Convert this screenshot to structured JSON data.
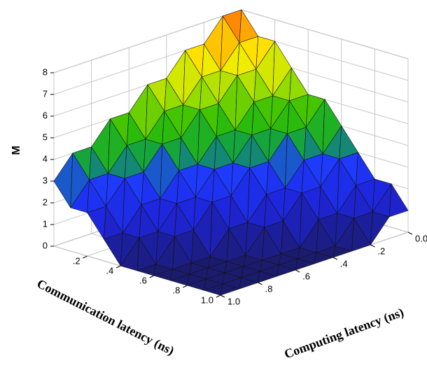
{
  "chart_data": {
    "type": "surface3d",
    "zlabel": "M",
    "xlabel": "Computing latency (ns)",
    "ylabel": "Communication latency (ns)",
    "x": [
      0,
      0.1,
      0.2,
      0.3,
      0.4,
      0.5,
      0.6,
      0.7,
      0.8,
      0.9,
      1.0
    ],
    "y": [
      0,
      0.1,
      0.2,
      0.3,
      0.4,
      0.5,
      0.6,
      0.7,
      0.8,
      0.9,
      1.0
    ],
    "z": [
      [
        8,
        8,
        7,
        7,
        6,
        6,
        5,
        5,
        4,
        4,
        3
      ],
      [
        7,
        7,
        6,
        6,
        5,
        5,
        4,
        4,
        3,
        3,
        2
      ],
      [
        7,
        6,
        6,
        5,
        5,
        4,
        4,
        3,
        3,
        2,
        2
      ],
      [
        6,
        5,
        5,
        4,
        4,
        3,
        3,
        2,
        2,
        1,
        1
      ],
      [
        5,
        5,
        4,
        4,
        3,
        3,
        2,
        2,
        1,
        1,
        0
      ],
      [
        5,
        4,
        4,
        3,
        3,
        2,
        2,
        1,
        1,
        0,
        0
      ],
      [
        4,
        3,
        3,
        2,
        2,
        1,
        1,
        0,
        0,
        0,
        0
      ],
      [
        3,
        3,
        2,
        2,
        1,
        1,
        0,
        0,
        0,
        0,
        0
      ],
      [
        2,
        2,
        1,
        1,
        0,
        0,
        0,
        0,
        0,
        0,
        0
      ],
      [
        2,
        1,
        1,
        0,
        0,
        0,
        0,
        0,
        0,
        0,
        0
      ],
      [
        1,
        1,
        0,
        0,
        0,
        0,
        0,
        0,
        0,
        0,
        0
      ]
    ],
    "xlim": [
      0,
      1
    ],
    "ylim": [
      0,
      1
    ],
    "zlim": [
      0,
      8
    ],
    "xticks": [
      {
        "value": 0,
        "label": "0.0"
      },
      {
        "value": 0.2,
        "label": ".2"
      },
      {
        "value": 0.4,
        "label": ".4"
      },
      {
        "value": 0.6,
        "label": ".6"
      },
      {
        "value": 0.8,
        "label": ".8"
      },
      {
        "value": 1,
        "label": "1.0"
      }
    ],
    "yticks": [
      {
        "value": 0.2,
        "label": ".2"
      },
      {
        "value": 0.4,
        "label": ".4"
      },
      {
        "value": 0.6,
        "label": ".6"
      },
      {
        "value": 0.8,
        "label": ".8"
      },
      {
        "value": 1,
        "label": "1.0"
      }
    ],
    "zticks": [
      0,
      1,
      2,
      3,
      4,
      5,
      6,
      7,
      8
    ],
    "grid": true,
    "colorscale": [
      [
        0,
        "#1b1b6e"
      ],
      [
        1.5,
        "#1e24d8"
      ],
      [
        2.8,
        "#1e3cff"
      ],
      [
        3.5,
        "#10a048"
      ],
      [
        4.5,
        "#30c000"
      ],
      [
        5.5,
        "#a8e000"
      ],
      [
        6.5,
        "#ffee00"
      ],
      [
        7.5,
        "#ff9900"
      ],
      [
        8,
        "#ff6a00"
      ]
    ]
  }
}
